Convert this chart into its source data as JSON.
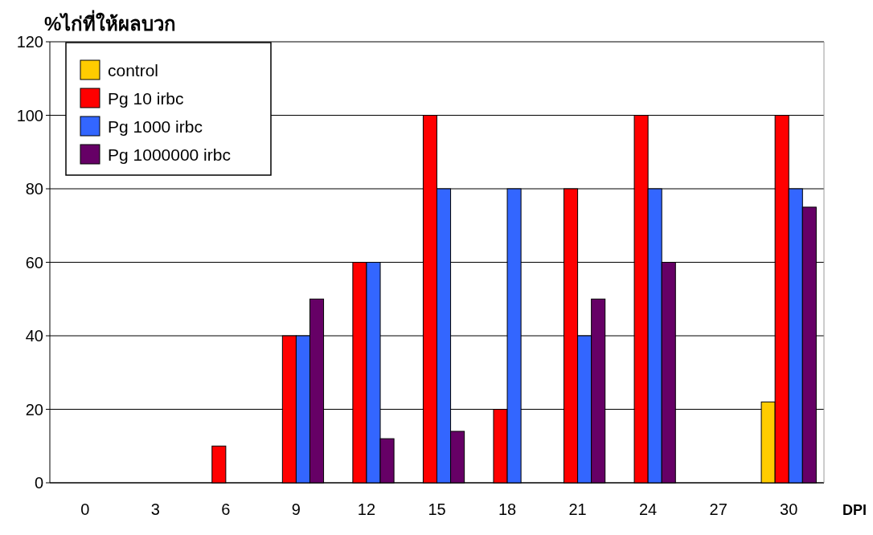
{
  "chart_data": {
    "type": "bar",
    "ylabel": "%ไก่ที่ให้ผลบวก",
    "xlabel": "DPI",
    "categories": [
      "0",
      "3",
      "6",
      "9",
      "12",
      "15",
      "18",
      "21",
      "24",
      "27",
      "30"
    ],
    "series": [
      {
        "name": "control",
        "color": "#ffcc00",
        "values": [
          0,
          0,
          0,
          0,
          0,
          0,
          0,
          0,
          0,
          0,
          22
        ]
      },
      {
        "name": "Pg 10 irbc",
        "color": "#ff0000",
        "values": [
          0,
          0,
          10,
          40,
          60,
          100,
          20,
          80,
          100,
          0,
          100
        ]
      },
      {
        "name": "Pg 1000 irbc",
        "color": "#3366ff",
        "values": [
          0,
          0,
          0,
          40,
          60,
          80,
          80,
          40,
          80,
          0,
          80
        ]
      },
      {
        "name": "Pg 1000000 irbc",
        "color": "#660066",
        "values": [
          0,
          0,
          0,
          50,
          12,
          14,
          0,
          50,
          60,
          0,
          75
        ]
      }
    ],
    "ylim": [
      0,
      120
    ],
    "yticks": [
      0,
      20,
      40,
      60,
      80,
      100,
      120
    ],
    "grid": "y",
    "legend": "top left"
  }
}
